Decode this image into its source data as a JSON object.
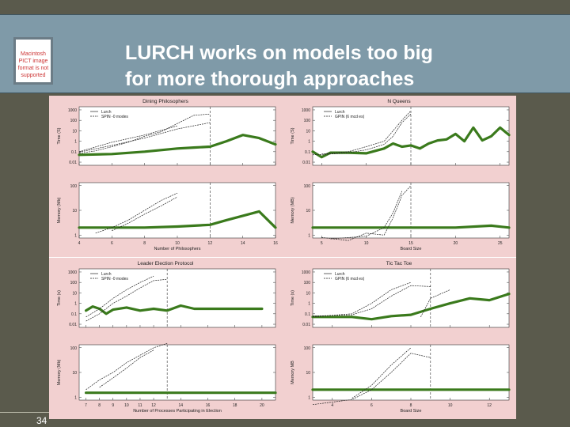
{
  "slide": {
    "title": "LURCH works on models too big\nfor more thorough approaches",
    "page_number": "34",
    "placeholder_text": "Macintosh PICT image format is not supported"
  },
  "colors": {
    "title_bg": "#7f9aa8",
    "slide_bg": "#5a5a4c",
    "panel_bg": "#f2d0d0",
    "lurch": "#3a7a1c",
    "spin": "#222222"
  },
  "chart_data": [
    {
      "type": "line",
      "title": "Dining Philosophers",
      "legend": [
        "Lurch",
        "SPIN -0 modes"
      ],
      "xlabel": "Number of Philosophers",
      "x_ticks": [
        "4",
        "6",
        "8",
        "10",
        "12",
        "14",
        "16"
      ],
      "xlim": [
        4,
        16
      ],
      "vline": 12,
      "top": {
        "ylabel": "Time (S)",
        "y_ticks": [
          "1000",
          "100",
          "10",
          "1",
          "0.1",
          "0.01"
        ],
        "series": [
          {
            "role": "lurch",
            "points": [
              [
                4,
                0.05
              ],
              [
                6,
                0.06
              ],
              [
                8,
                0.1
              ],
              [
                10,
                0.2
              ],
              [
                11,
                0.25
              ],
              [
                12,
                0.3
              ],
              [
                13,
                1
              ],
              [
                14,
                4
              ],
              [
                15,
                2
              ],
              [
                16,
                0.5
              ]
            ]
          },
          {
            "role": "spin",
            "points": [
              [
                4,
                0.07
              ],
              [
                5,
                0.12
              ],
              [
                6,
                0.3
              ],
              [
                7,
                0.8
              ],
              [
                8,
                3
              ],
              [
                9,
                8
              ],
              [
                10,
                50
              ],
              [
                11,
                300
              ],
              [
                12,
                400
              ]
            ]
          },
          {
            "role": "spin",
            "points": [
              [
                4,
                0.09
              ],
              [
                6,
                0.4
              ],
              [
                8,
                2
              ],
              [
                10,
                15
              ],
              [
                12,
                60
              ]
            ]
          },
          {
            "role": "spin",
            "points": [
              [
                4,
                0.1
              ],
              [
                6,
                0.8
              ],
              [
                8,
                4
              ],
              [
                10,
                30
              ]
            ]
          }
        ]
      },
      "bottom": {
        "ylabel": "Memory (Mb)",
        "y_ticks": [
          "100",
          "10",
          "1"
        ],
        "series": [
          {
            "role": "lurch",
            "points": [
              [
                4,
                2
              ],
              [
                8,
                2
              ],
              [
                10,
                2.2
              ],
              [
                12,
                2.6
              ],
              [
                13,
                4
              ],
              [
                14,
                6
              ],
              [
                15,
                9
              ],
              [
                16,
                2
              ]
            ]
          },
          {
            "role": "spin",
            "points": [
              [
                5,
                1.2
              ],
              [
                6,
                2
              ],
              [
                7,
                4
              ],
              [
                8,
                10
              ],
              [
                9,
                25
              ],
              [
                10,
                50
              ]
            ]
          },
          {
            "role": "spin",
            "points": [
              [
                6,
                1.5
              ],
              [
                7,
                3
              ],
              [
                8,
                7
              ],
              [
                9,
                15
              ],
              [
                10,
                35
              ]
            ]
          }
        ]
      }
    },
    {
      "type": "line",
      "title": "N Queens",
      "legend": [
        "Lurch",
        "GPIN (6 mcd es)"
      ],
      "xlabel": "Board Size",
      "x_ticks": [
        "5",
        "10",
        "15",
        "20",
        "25"
      ],
      "xlim": [
        4,
        26
      ],
      "vline": 15,
      "top": {
        "ylabel": "Time (S)",
        "y_ticks": [
          "1000",
          "100",
          "10",
          "1",
          "0.1",
          "0.01"
        ],
        "series": [
          {
            "role": "lurch",
            "points": [
              [
                4,
                0.1
              ],
              [
                5,
                0.03
              ],
              [
                6,
                0.08
              ],
              [
                8,
                0.08
              ],
              [
                10,
                0.07
              ],
              [
                12,
                0.2
              ],
              [
                13,
                0.6
              ],
              [
                14,
                0.3
              ],
              [
                15,
                0.4
              ],
              [
                16,
                0.2
              ],
              [
                17,
                0.6
              ],
              [
                18,
                1.2
              ],
              [
                19,
                1.5
              ],
              [
                20,
                5
              ],
              [
                21,
                1
              ],
              [
                22,
                20
              ],
              [
                23,
                1.2
              ],
              [
                24,
                3
              ],
              [
                25,
                20
              ],
              [
                26,
                4
              ]
            ]
          },
          {
            "role": "spin",
            "points": [
              [
                4,
                0.05
              ],
              [
                6,
                0.06
              ],
              [
                8,
                0.08
              ],
              [
                10,
                0.15
              ],
              [
                12,
                0.5
              ],
              [
                13,
                3
              ],
              [
                14,
                60
              ],
              [
                15,
                400
              ]
            ]
          },
          {
            "role": "spin",
            "points": [
              [
                5,
                0.06
              ],
              [
                8,
                0.1
              ],
              [
                10,
                0.3
              ],
              [
                12,
                1
              ],
              [
                13,
                10
              ],
              [
                14,
                100
              ],
              [
                15,
                800
              ]
            ]
          }
        ]
      },
      "bottom": {
        "ylabel": "Memory (MB)",
        "y_ticks": [
          "100",
          "10",
          "1"
        ],
        "series": [
          {
            "role": "lurch",
            "points": [
              [
                4,
                2
              ],
              [
                20,
                2
              ],
              [
                24,
                2.4
              ],
              [
                26,
                2
              ]
            ]
          },
          {
            "role": "spin",
            "points": [
              [
                5,
                0.8
              ],
              [
                8,
                0.6
              ],
              [
                10,
                1.2
              ],
              [
                12,
                1
              ],
              [
                13,
                5
              ],
              [
                14,
                40
              ],
              [
                15,
                100
              ]
            ]
          },
          {
            "role": "spin",
            "points": [
              [
                6,
                0.7
              ],
              [
                10,
                0.9
              ],
              [
                12,
                2
              ],
              [
                13,
                8
              ],
              [
                14,
                60
              ]
            ]
          }
        ]
      }
    },
    {
      "type": "line",
      "title": "Leader Election Protocol",
      "legend": [
        "Lurch",
        "SPIN -0 modes"
      ],
      "xlabel": "Number of Processes Participating in Election",
      "x_ticks": [
        "7",
        "8",
        "9",
        "10",
        "11",
        "12",
        "14",
        "16",
        "18",
        "20"
      ],
      "xlim": [
        6.5,
        21
      ],
      "vline": 13,
      "top": {
        "ylabel": "Time (s)",
        "y_ticks": [
          "1000",
          "100",
          "10",
          "1",
          "0.1",
          "0.01"
        ],
        "series": [
          {
            "role": "lurch",
            "points": [
              [
                7,
                0.2
              ],
              [
                7.5,
                0.5
              ],
              [
                8,
                0.3
              ],
              [
                8.5,
                0.1
              ],
              [
                9,
                0.25
              ],
              [
                10,
                0.4
              ],
              [
                11,
                0.2
              ],
              [
                12,
                0.3
              ],
              [
                13,
                0.2
              ],
              [
                14,
                0.6
              ],
              [
                15,
                0.3
              ],
              [
                16,
                0.3
              ],
              [
                18,
                0.3
              ],
              [
                20,
                0.3
              ]
            ]
          },
          {
            "role": "spin",
            "points": [
              [
                7,
                0.02
              ],
              [
                8,
                0.1
              ],
              [
                9,
                1
              ],
              [
                10,
                5
              ],
              [
                11,
                30
              ],
              [
                12,
                150
              ],
              [
                13,
                200
              ]
            ]
          },
          {
            "role": "spin",
            "points": [
              [
                7,
                0.05
              ],
              [
                8,
                0.3
              ],
              [
                9,
                3
              ],
              [
                10,
                20
              ],
              [
                11,
                100
              ],
              [
                12,
                400
              ]
            ]
          }
        ]
      },
      "bottom": {
        "ylabel": "Memory (Mb)",
        "y_ticks": [
          "100",
          "10",
          "1"
        ],
        "series": [
          {
            "role": "lurch",
            "points": [
              [
                7,
                1.5
              ],
              [
                21,
                1.5
              ]
            ]
          },
          {
            "role": "spin",
            "points": [
              [
                7,
                2
              ],
              [
                8,
                5
              ],
              [
                9,
                10
              ],
              [
                10,
                25
              ],
              [
                11,
                50
              ],
              [
                12,
                100
              ],
              [
                13,
                150
              ]
            ]
          },
          {
            "role": "spin",
            "points": [
              [
                8,
                2.5
              ],
              [
                9,
                6
              ],
              [
                10,
                15
              ],
              [
                11,
                40
              ],
              [
                12,
                80
              ]
            ]
          }
        ]
      }
    },
    {
      "type": "line",
      "title": "Tic Tac Toe",
      "legend": [
        "Lurch",
        "GPIN (6 mcd es)"
      ],
      "xlabel": "Board Size",
      "x_ticks": [
        "4",
        "6",
        "8",
        "10",
        "12"
      ],
      "xlim": [
        3,
        13
      ],
      "vline": 9,
      "top": {
        "ylabel": "Time (s)",
        "y_ticks": [
          "1000",
          "100",
          "10",
          "1",
          "0.1",
          "0.01"
        ],
        "series": [
          {
            "role": "lurch",
            "points": [
              [
                3,
                0.05
              ],
              [
                5,
                0.05
              ],
              [
                6,
                0.03
              ],
              [
                7,
                0.06
              ],
              [
                8,
                0.08
              ],
              [
                9,
                0.3
              ],
              [
                10,
                1
              ],
              [
                11,
                3
              ],
              [
                12,
                2
              ],
              [
                13,
                8
              ]
            ]
          },
          {
            "role": "spin",
            "points": [
              [
                3,
                0.06
              ],
              [
                5,
                0.08
              ],
              [
                6,
                0.3
              ],
              [
                7,
                5
              ],
              [
                8,
                50
              ],
              [
                9,
                40
              ]
            ]
          },
          {
            "role": "spin",
            "points": [
              [
                3,
                0.05
              ],
              [
                5,
                0.1
              ],
              [
                6,
                1
              ],
              [
                7,
                20
              ],
              [
                8,
                100
              ]
            ]
          },
          {
            "role": "spin",
            "points": [
              [
                8.5,
                0.05
              ],
              [
                9,
                3
              ],
              [
                10,
                20
              ]
            ]
          }
        ]
      },
      "bottom": {
        "ylabel": "Memory MB",
        "y_ticks": [
          "100",
          "10",
          "1"
        ],
        "series": [
          {
            "role": "lurch",
            "points": [
              [
                3,
                2
              ],
              [
                13,
                2
              ]
            ]
          },
          {
            "role": "spin",
            "points": [
              [
                3,
                0.5
              ],
              [
                5,
                0.8
              ],
              [
                6,
                2
              ],
              [
                7,
                10
              ],
              [
                8,
                60
              ],
              [
                9,
                40
              ]
            ]
          },
          {
            "role": "spin",
            "points": [
              [
                5,
                0.9
              ],
              [
                6,
                3
              ],
              [
                7,
                20
              ],
              [
                8,
                100
              ]
            ]
          }
        ]
      }
    }
  ]
}
